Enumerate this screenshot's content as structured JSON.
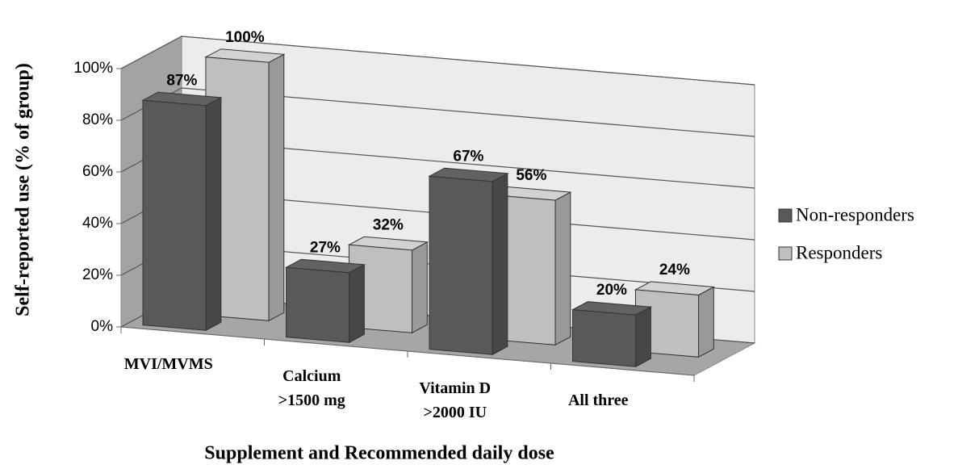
{
  "chart_data": {
    "type": "bar3d",
    "x_label": "Supplement and Recommended daily dose",
    "y_label": "Self-reported use (% of group)",
    "categories": [
      [
        "MVI/MVMS"
      ],
      [
        "Calcium",
        ">1500 mg"
      ],
      [
        "Vitamin D",
        ">2000 IU"
      ],
      [
        "All three"
      ]
    ],
    "series": [
      {
        "name": "Non-responders",
        "color": "#595959",
        "values": [
          87,
          27,
          67,
          20
        ],
        "value_labels": [
          "87%",
          "27%",
          "67%",
          "20%"
        ]
      },
      {
        "name": "Responders",
        "color": "#bfbfbf",
        "values": [
          100,
          32,
          56,
          24
        ],
        "value_labels": [
          "100%",
          "32%",
          "56%",
          "24%"
        ]
      }
    ],
    "ylim": [
      0,
      100
    ],
    "yticks": [
      {
        "value": 0,
        "label": "0%"
      },
      {
        "value": 20,
        "label": "20%"
      },
      {
        "value": 40,
        "label": "40%"
      },
      {
        "value": 60,
        "label": "60%"
      },
      {
        "value": 80,
        "label": "80%"
      },
      {
        "value": 100,
        "label": "100%"
      }
    ],
    "grid": true,
    "legend": "right"
  }
}
